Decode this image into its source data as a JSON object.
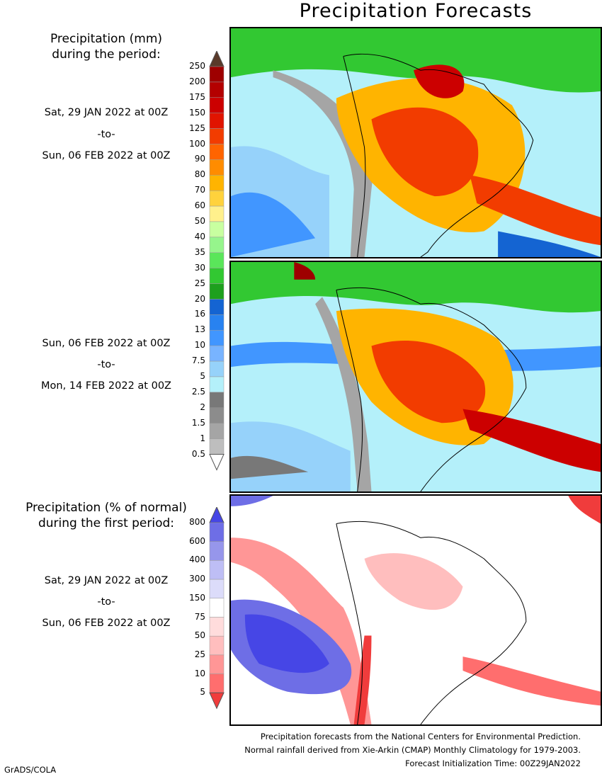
{
  "title": "Precipitation Forecasts",
  "amount_legend": {
    "heading_line1": "Precipitation (mm)",
    "heading_line2": "during the period:",
    "levels": [
      "250",
      "200",
      "175",
      "150",
      "125",
      "100",
      "90",
      "80",
      "70",
      "60",
      "50",
      "40",
      "35",
      "30",
      "25",
      "20",
      "16",
      "13",
      "10",
      "7.5",
      "5",
      "2.5",
      "2",
      "1.5",
      "1",
      "0.5"
    ],
    "colors": [
      "#9e0000",
      "#b40000",
      "#cc0000",
      "#e11400",
      "#f23c00",
      "#ff6400",
      "#ff8c00",
      "#ffb400",
      "#ffd23c",
      "#fff08c",
      "#c8ffa0",
      "#96f58c",
      "#5ae65a",
      "#32c832",
      "#1ea01e",
      "#1464d2",
      "#2882f0",
      "#4196ff",
      "#78b4ff",
      "#96d2fa",
      "#b4f0fa",
      "#787878",
      "#8c8c8c",
      "#a5a5a5",
      "#bebebe",
      "#ffffff"
    ]
  },
  "period1": {
    "start": "Sat, 29 JAN 2022 at 00Z",
    "sep": "-to-",
    "end": "Sun, 06 FEB 2022 at 00Z"
  },
  "period2": {
    "start": "Sun, 06 FEB 2022 at 00Z",
    "sep": "-to-",
    "end": "Mon, 14 FEB 2022 at 00Z"
  },
  "normal_legend": {
    "heading_line1": "Precipitation (% of normal)",
    "heading_line2": "during the first period:",
    "levels": [
      "800",
      "600",
      "400",
      "300",
      "150",
      "75",
      "50",
      "25",
      "10",
      "5"
    ],
    "colors": [
      "#4646e6",
      "#6e6ee6",
      "#9696eb",
      "#bebef5",
      "#dcdcfa",
      "#ffffff",
      "#ffdcdc",
      "#ffbebe",
      "#ff9696",
      "#ff6e6e",
      "#f03c3c"
    ]
  },
  "period3": {
    "start": "Sat, 29 JAN 2022 at 00Z",
    "sep": "-to-",
    "end": "Sun, 06 FEB 2022 at 00Z"
  },
  "footer": {
    "line1": "Precipitation forecasts from the National Centers for Environmental Prediction.",
    "line2": "Normal rainfall derived from Xie-Arkin (CMAP) Monthly Climatology for 1979-2003.",
    "line3": "Forecast Initialization Time: 00Z29JAN2022"
  },
  "credit": "GrADS/COLA"
}
